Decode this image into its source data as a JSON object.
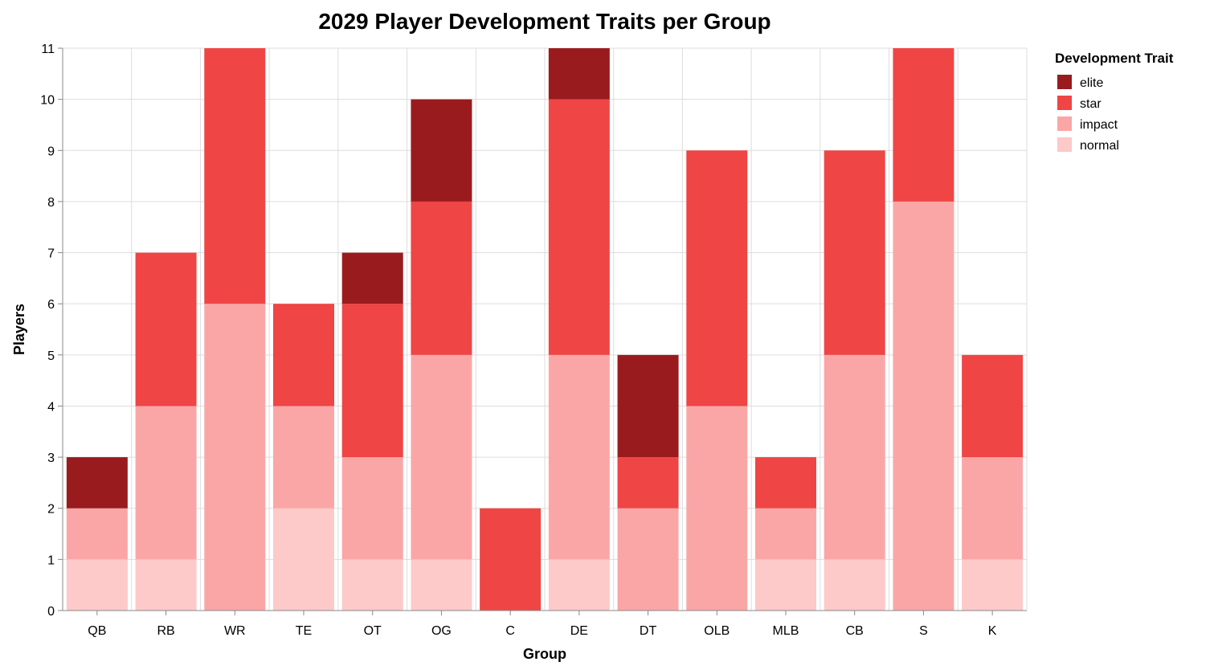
{
  "chart_data": {
    "type": "bar",
    "stacked": true,
    "title": "2029 Player Development Traits per Group",
    "xlabel": "Group",
    "ylabel": "Players",
    "ylim": [
      0,
      11
    ],
    "yticks": [
      0,
      1,
      2,
      3,
      4,
      5,
      6,
      7,
      8,
      9,
      10,
      11
    ],
    "grid": true,
    "legend": {
      "title": "Development Trait",
      "placement": "top-right"
    },
    "categories": [
      "QB",
      "RB",
      "WR",
      "TE",
      "OT",
      "OG",
      "C",
      "DE",
      "DT",
      "OLB",
      "MLB",
      "CB",
      "S",
      "K"
    ],
    "series": [
      {
        "name": "normal",
        "color": "#fdc9c9",
        "values": [
          1,
          1,
          0,
          2,
          1,
          1,
          0,
          1,
          0,
          0,
          1,
          1,
          0,
          1
        ]
      },
      {
        "name": "impact",
        "color": "#fba6a6",
        "values": [
          1,
          3,
          6,
          2,
          2,
          4,
          0,
          4,
          2,
          4,
          1,
          4,
          8,
          2
        ]
      },
      {
        "name": "star",
        "color": "#ef4545",
        "values": [
          0,
          3,
          5,
          2,
          3,
          3,
          2,
          5,
          1,
          5,
          1,
          4,
          3,
          2
        ]
      },
      {
        "name": "elite",
        "color": "#991b1e",
        "values": [
          1,
          0,
          0,
          0,
          1,
          2,
          0,
          1,
          2,
          0,
          0,
          0,
          0,
          0
        ]
      }
    ],
    "legend_order": [
      "elite",
      "star",
      "impact",
      "normal"
    ]
  }
}
